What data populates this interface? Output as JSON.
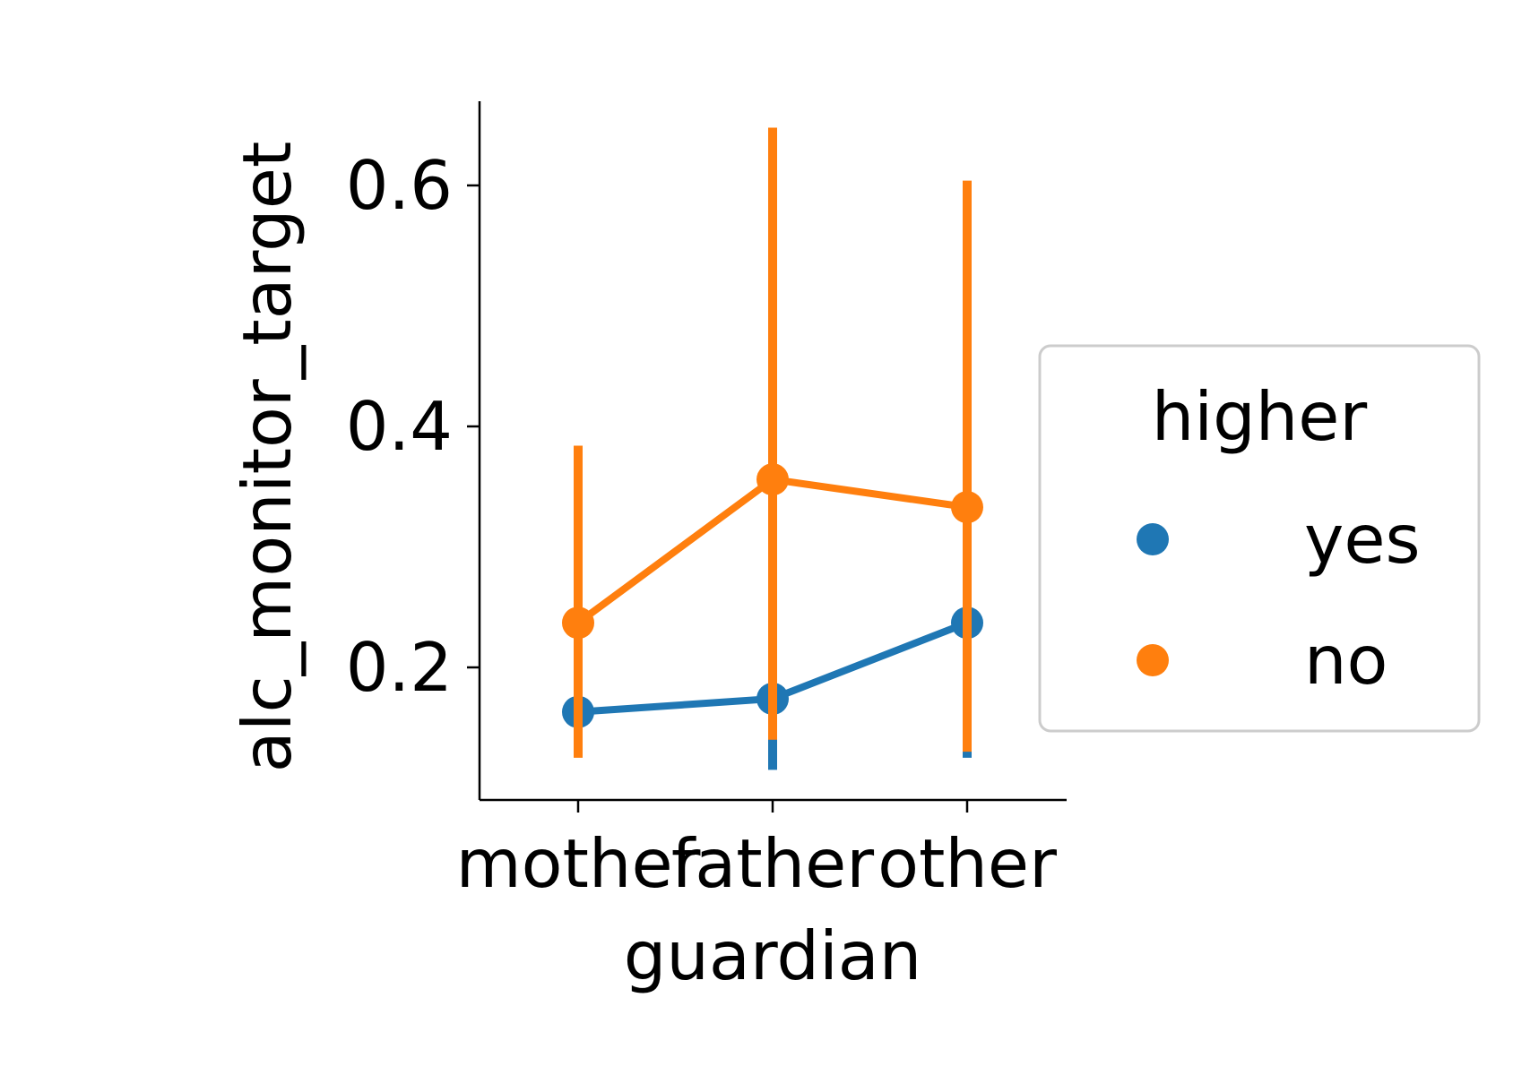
{
  "chart_data": {
    "type": "line",
    "xlabel": "guardian",
    "ylabel": "alc_monitor_target",
    "categories": [
      "mother",
      "father",
      "other"
    ],
    "yticks": [
      0.2,
      0.4,
      0.6
    ],
    "ytick_labels": [
      "0.2",
      "0.4",
      "0.6"
    ],
    "ylim": [
      0.11,
      0.67
    ],
    "grid": false,
    "legend": {
      "title": "higher",
      "placement": "center-right-outside"
    },
    "series": [
      {
        "name": "yes",
        "color": "#1f77b4",
        "values": [
          0.163,
          0.174,
          0.237
        ],
        "ci_low": [
          0.13,
          0.115,
          0.125
        ],
        "ci_high": [
          0.2,
          0.24,
          0.36
        ]
      },
      {
        "name": "no",
        "color": "#ff7f0e",
        "values": [
          0.237,
          0.356,
          0.333
        ],
        "ci_low": [
          0.125,
          0.14,
          0.13
        ],
        "ci_high": [
          0.384,
          0.648,
          0.604
        ]
      }
    ]
  }
}
